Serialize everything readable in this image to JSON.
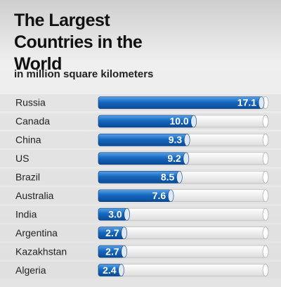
{
  "chart_data": {
    "type": "bar",
    "orientation": "horizontal",
    "title": "The Largest Countries in the World",
    "subtitle": "in million square kilometers",
    "categories": [
      "Russia",
      "Canada",
      "China",
      "US",
      "Brazil",
      "Australia",
      "India",
      "Argentina",
      "Kazakhstan",
      "Algeria"
    ],
    "values": [
      17.1,
      10.0,
      9.3,
      9.2,
      8.5,
      7.6,
      3.0,
      2.7,
      2.7,
      2.4
    ],
    "value_labels": [
      "17.1",
      "10.0",
      "9.3",
      "9.2",
      "8.5",
      "7.6",
      "3.0",
      "2.7",
      "2.7",
      "2.4"
    ],
    "color": "#1668c0"
  }
}
